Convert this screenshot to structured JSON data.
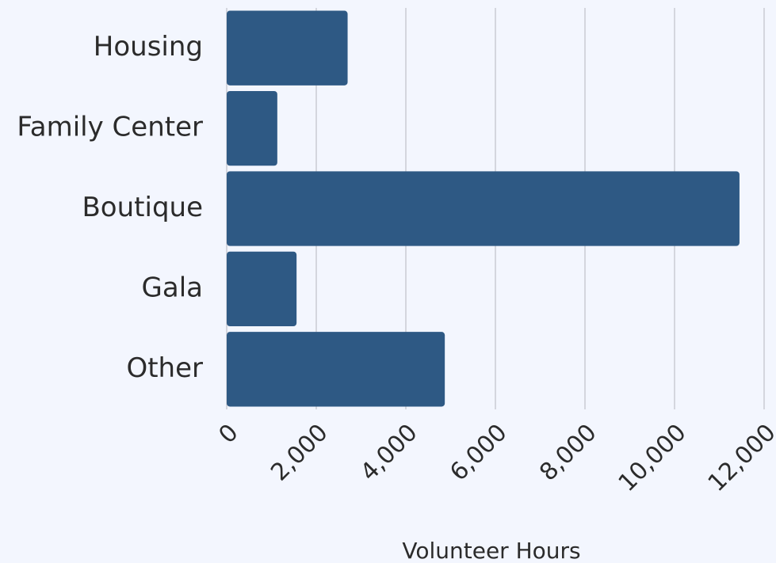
{
  "chart_data": {
    "type": "bar",
    "orientation": "horizontal",
    "categories": [
      "Housing",
      "Family Center",
      "Boutique",
      "Gala",
      "Other"
    ],
    "values": [
      2700,
      1130,
      11450,
      1560,
      4870
    ],
    "color": "#2e5984",
    "x_label": "Volunteer Hours",
    "xlim": [
      0,
      12000
    ],
    "xticks": [
      0,
      {
        "value": 2000,
        "label": "2,000"
      },
      {
        "value": 4000,
        "label": "4,000"
      },
      {
        "value": 6000,
        "label": "6,000"
      },
      {
        "value": 8000,
        "label": "8,000"
      },
      {
        "value": 10000,
        "label": "10,000"
      },
      {
        "value": 12000,
        "label": "12,000"
      }
    ],
    "grid": true
  }
}
